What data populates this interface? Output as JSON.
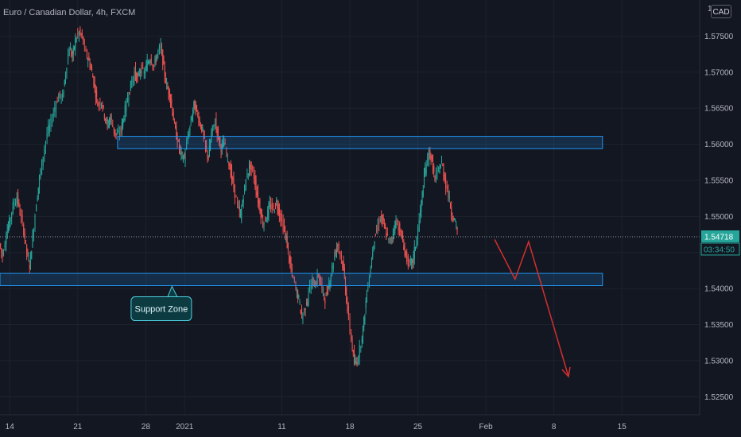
{
  "header": {
    "title": "Euro / Canadian Dollar, 4h, FXCM",
    "currency": "CAD"
  },
  "chart_data": {
    "type": "candlestick",
    "title": "Euro / Canadian Dollar, 4h, FXCM",
    "ylim": [
      1.5225,
      1.58
    ],
    "y_ticks": [
      1.525,
      1.53,
      1.535,
      1.54,
      1.545,
      1.55,
      1.555,
      1.56,
      1.565,
      1.57,
      1.575
    ],
    "y_tick_labels": [
      "1.52500",
      "1.53000",
      "1.53500",
      "1.54000",
      "1.54500",
      "1.55000",
      "1.55500",
      "1.56000",
      "1.56500",
      "1.57000",
      "1.57500"
    ],
    "y_top_partial_label": "1",
    "x_ticks": [
      {
        "label": "14",
        "x": 14
      },
      {
        "label": "21",
        "x": 21
      },
      {
        "label": "28",
        "x": 28
      },
      {
        "label": "2021",
        "x": 32
      },
      {
        "label": "11",
        "x": 42
      },
      {
        "label": "18",
        "x": 49
      },
      {
        "label": "25",
        "x": 56
      },
      {
        "label": "Feb",
        "x": 63
      },
      {
        "label": "8",
        "x": 70
      },
      {
        "label": "15",
        "x": 77
      }
    ],
    "x_axis_note": "x in days since Dec 1 2020",
    "x_range": [
      13,
      85
    ],
    "last_price": {
      "label": "1.54718",
      "value": 1.54718
    },
    "countdown": "03:34:50",
    "colors": {
      "up": "#26a69a",
      "down": "#ef5350",
      "zone": "#2196f3",
      "arrow": "#d32f2f"
    },
    "zones": [
      {
        "name": "resistance-zone",
        "x0": 25.1,
        "x1": 75,
        "y0": 1.5594,
        "y1": 1.5611
      },
      {
        "name": "support-zone",
        "x0": 13,
        "x1": 75,
        "y0": 1.5404,
        "y1": 1.5421
      }
    ],
    "annotation": {
      "text": "Support Zone",
      "x": 29.6,
      "y": 1.5372
    },
    "projection": [
      {
        "x": 63.9,
        "y": 1.5468
      },
      {
        "x": 66,
        "y": 1.5413
      },
      {
        "x": 67.4,
        "y": 1.5465
      },
      {
        "x": 71.5,
        "y": 1.5278
      }
    ],
    "path_points": [
      [
        13.0,
        1.5462
      ],
      [
        13.3,
        1.5445
      ],
      [
        13.7,
        1.5475
      ],
      [
        14.0,
        1.5492
      ],
      [
        14.4,
        1.5515
      ],
      [
        14.8,
        1.5528
      ],
      [
        15.1,
        1.5505
      ],
      [
        15.5,
        1.548
      ],
      [
        15.8,
        1.545
      ],
      [
        16.1,
        1.5432
      ],
      [
        16.4,
        1.547
      ],
      [
        16.8,
        1.552
      ],
      [
        17.1,
        1.5552
      ],
      [
        17.5,
        1.5585
      ],
      [
        17.9,
        1.5615
      ],
      [
        18.3,
        1.563
      ],
      [
        18.7,
        1.5652
      ],
      [
        19.1,
        1.5668
      ],
      [
        19.5,
        1.5665
      ],
      [
        19.8,
        1.57
      ],
      [
        20.2,
        1.5735
      ],
      [
        20.5,
        1.572
      ],
      [
        20.8,
        1.5745
      ],
      [
        21.2,
        1.5755
      ],
      [
        21.5,
        1.5748
      ],
      [
        21.9,
        1.5725
      ],
      [
        22.2,
        1.5715
      ],
      [
        22.5,
        1.57
      ],
      [
        22.8,
        1.5678
      ],
      [
        23.1,
        1.5655
      ],
      [
        23.5,
        1.566
      ],
      [
        23.8,
        1.564
      ],
      [
        24.1,
        1.5625
      ],
      [
        24.4,
        1.5638
      ],
      [
        24.8,
        1.5618
      ],
      [
        25.1,
        1.5612
      ],
      [
        25.5,
        1.562
      ],
      [
        25.8,
        1.564
      ],
      [
        26.2,
        1.5665
      ],
      [
        26.5,
        1.5682
      ],
      [
        26.9,
        1.57
      ],
      [
        27.2,
        1.569
      ],
      [
        27.5,
        1.5705
      ],
      [
        27.9,
        1.5698
      ],
      [
        28.2,
        1.5712
      ],
      [
        28.5,
        1.572
      ],
      [
        28.9,
        1.5708
      ],
      [
        29.2,
        1.5725
      ],
      [
        29.6,
        1.5735
      ],
      [
        29.9,
        1.5705
      ],
      [
        30.2,
        1.568
      ],
      [
        30.5,
        1.567
      ],
      [
        30.8,
        1.5645
      ],
      [
        31.1,
        1.5618
      ],
      [
        31.4,
        1.56
      ],
      [
        31.7,
        1.5585
      ],
      [
        32.0,
        1.558
      ],
      [
        32.4,
        1.561
      ],
      [
        32.7,
        1.5632
      ],
      [
        33.0,
        1.5655
      ],
      [
        33.3,
        1.5645
      ],
      [
        33.6,
        1.563
      ],
      [
        33.9,
        1.5618
      ],
      [
        34.2,
        1.5595
      ],
      [
        34.5,
        1.5582
      ],
      [
        34.8,
        1.5615
      ],
      [
        35.2,
        1.5632
      ],
      [
        35.5,
        1.561
      ],
      [
        35.8,
        1.5595
      ],
      [
        36.1,
        1.5602
      ],
      [
        36.5,
        1.558
      ],
      [
        36.8,
        1.556
      ],
      [
        37.1,
        1.554
      ],
      [
        37.5,
        1.5515
      ],
      [
        37.8,
        1.55
      ],
      [
        38.1,
        1.553
      ],
      [
        38.5,
        1.556
      ],
      [
        38.8,
        1.557
      ],
      [
        39.2,
        1.5555
      ],
      [
        39.5,
        1.553
      ],
      [
        39.8,
        1.551
      ],
      [
        40.1,
        1.549
      ],
      [
        40.5,
        1.55
      ],
      [
        40.8,
        1.5515
      ],
      [
        41.2,
        1.551
      ],
      [
        41.5,
        1.552
      ],
      [
        41.8,
        1.5505
      ],
      [
        42.2,
        1.5485
      ],
      [
        42.5,
        1.547
      ],
      [
        42.8,
        1.544
      ],
      [
        43.1,
        1.542
      ],
      [
        43.5,
        1.54
      ],
      [
        43.8,
        1.5385
      ],
      [
        44.1,
        1.536
      ],
      [
        44.5,
        1.5375
      ],
      [
        44.8,
        1.5395
      ],
      [
        45.2,
        1.541
      ],
      [
        45.5,
        1.5405
      ],
      [
        45.8,
        1.542
      ],
      [
        46.2,
        1.5398
      ],
      [
        46.5,
        1.5385
      ],
      [
        46.8,
        1.54
      ],
      [
        47.1,
        1.542
      ],
      [
        47.5,
        1.5448
      ],
      [
        47.8,
        1.5462
      ],
      [
        48.2,
        1.5442
      ],
      [
        48.5,
        1.5415
      ],
      [
        48.8,
        1.537
      ],
      [
        49.2,
        1.533
      ],
      [
        49.5,
        1.5295
      ],
      [
        49.8,
        1.53
      ],
      [
        50.2,
        1.5325
      ],
      [
        50.5,
        1.5355
      ],
      [
        50.8,
        1.5395
      ],
      [
        51.2,
        1.543
      ],
      [
        51.5,
        1.5465
      ],
      [
        51.8,
        1.548
      ],
      [
        52.2,
        1.55
      ],
      [
        52.5,
        1.549
      ],
      [
        52.8,
        1.5475
      ],
      [
        53.2,
        1.5462
      ],
      [
        53.5,
        1.5478
      ],
      [
        53.8,
        1.5495
      ],
      [
        54.2,
        1.548
      ],
      [
        54.5,
        1.5465
      ],
      [
        54.8,
        1.5445
      ],
      [
        55.2,
        1.5432
      ],
      [
        55.5,
        1.5438
      ],
      [
        55.8,
        1.546
      ],
      [
        56.2,
        1.5495
      ],
      [
        56.5,
        1.553
      ],
      [
        56.8,
        1.5565
      ],
      [
        57.2,
        1.559
      ],
      [
        57.5,
        1.5575
      ],
      [
        57.8,
        1.555
      ],
      [
        58.2,
        1.5565
      ],
      [
        58.5,
        1.5575
      ],
      [
        58.8,
        1.5552
      ],
      [
        59.2,
        1.553
      ],
      [
        59.5,
        1.5505
      ],
      [
        59.8,
        1.5495
      ],
      [
        60.1,
        1.548
      ]
    ]
  }
}
